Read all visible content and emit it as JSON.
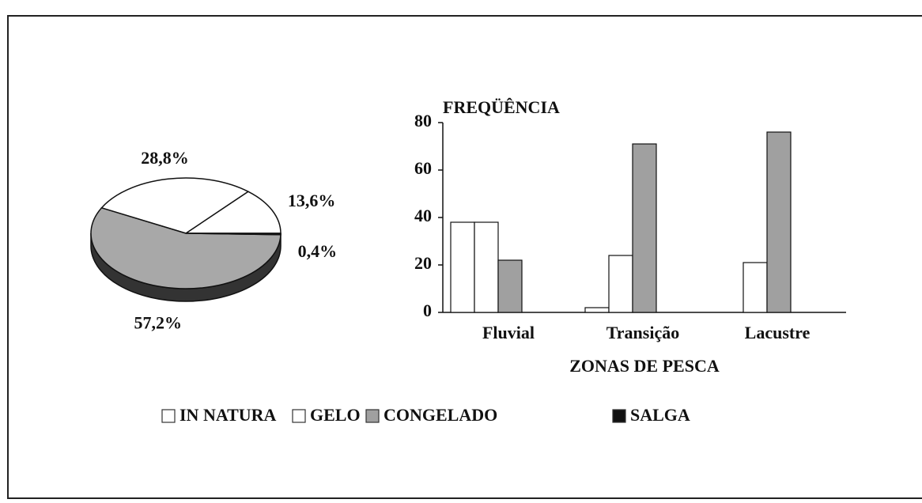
{
  "chart_data": [
    {
      "type": "pie",
      "values": [
        13.6,
        28.8,
        57.2,
        0.4
      ],
      "value_labels": [
        "13,6%",
        "28,8%",
        "57,2%",
        "0,4%"
      ],
      "colors": [
        "#ffffff",
        "#ffffff",
        "#a8a8a8",
        "#111111"
      ]
    },
    {
      "type": "bar",
      "ylabel": "FREQÜÊNCIA",
      "xlabel": "ZONAS DE PESCA",
      "categories": [
        "Fluvial",
        "Transição",
        "Lacustre"
      ],
      "series": [
        {
          "name": "IN NATURA",
          "color": "#ffffff",
          "values": [
            38,
            2,
            0
          ]
        },
        {
          "name": "GELO",
          "color": "#ffffff",
          "values": [
            38,
            24,
            21
          ]
        },
        {
          "name": "CONGELADO",
          "color": "#a0a0a0",
          "values": [
            22,
            71,
            76
          ]
        },
        {
          "name": "SALGA",
          "color": "#111111",
          "values": [
            0,
            0,
            0
          ]
        }
      ],
      "ylim": [
        0,
        80
      ],
      "yticks": [
        0,
        20,
        40,
        60,
        80
      ],
      "legend": "bottom"
    }
  ]
}
